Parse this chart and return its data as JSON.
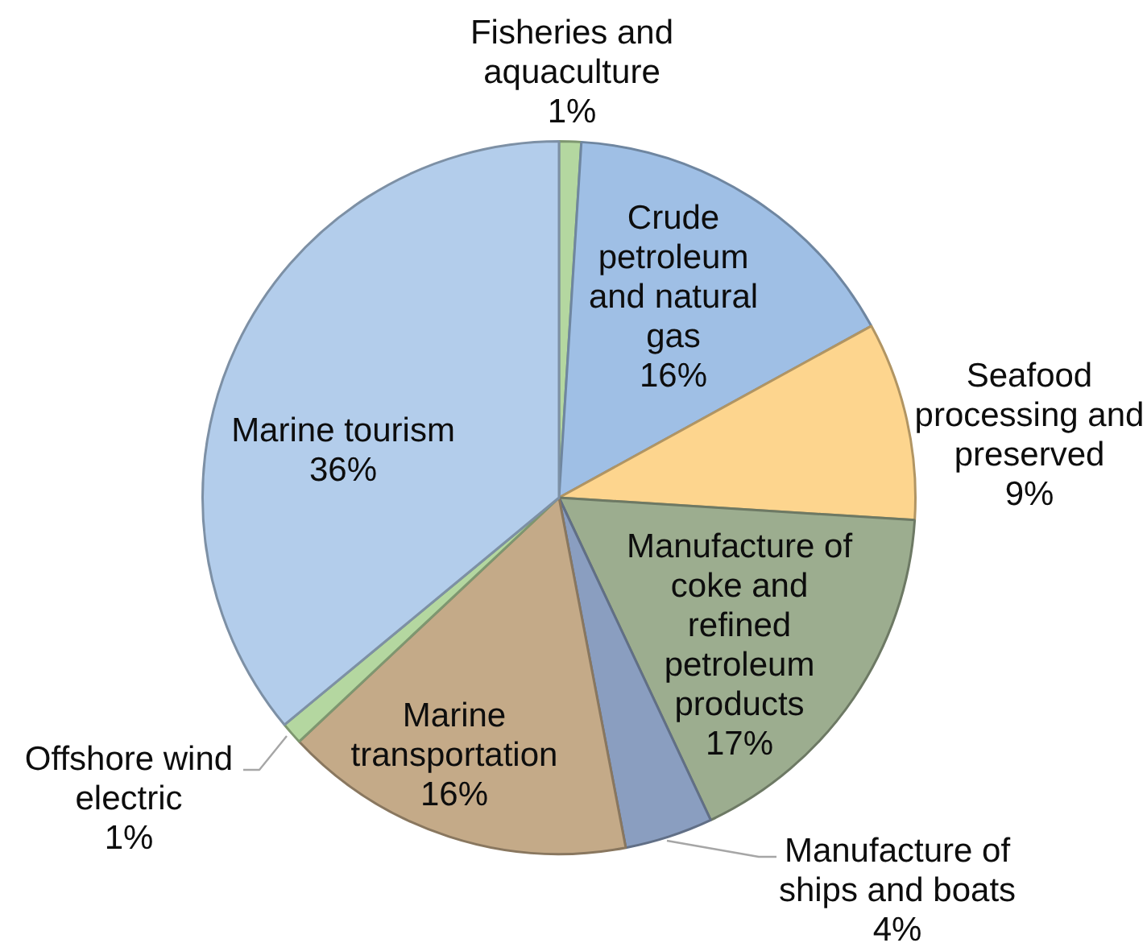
{
  "chart_data": {
    "type": "pie",
    "categories": [
      "Fisheries and aquaculture",
      "Crude petroleum and natural gas",
      "Seafood processing and preserved",
      "Manufacture of coke and refined petroleum products",
      "Manufacture of ships and boats",
      "Marine transportation",
      "Offshore wind electric",
      "Marine tourism"
    ],
    "values": [
      1,
      16,
      9,
      17,
      4,
      16,
      1,
      36
    ],
    "value_labels": [
      "1%",
      "16%",
      "9%",
      "17%",
      "4%",
      "16%",
      "1%",
      "36%"
    ],
    "colors": [
      "#b4d7a0",
      "#9fbfe5",
      "#fdd58e",
      "#9cad8f",
      "#8a9ec0",
      "#c4aa88",
      "#b4d7a0",
      "#b3cdeb"
    ]
  }
}
